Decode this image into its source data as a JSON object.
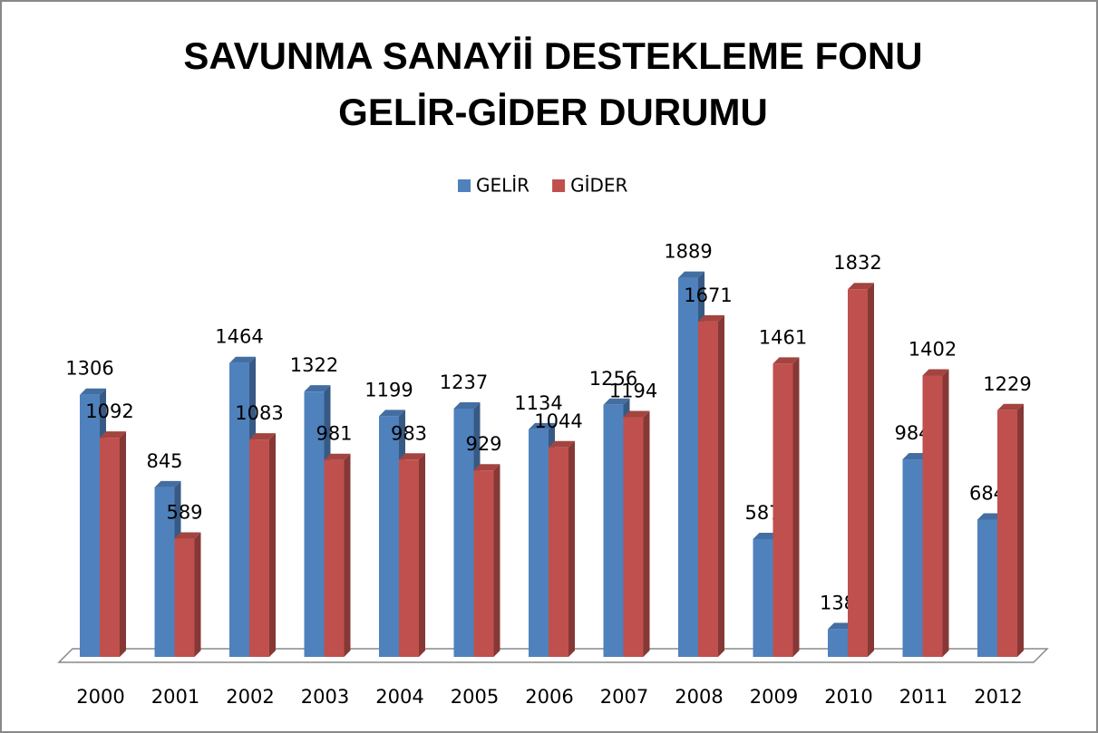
{
  "chart_data": {
    "type": "bar3d",
    "title": "SAVUNMA SANAYİİ DESTEKLEME FONU GELİR-GİDER DURUMU",
    "categories": [
      "2000",
      "2001",
      "2002",
      "2003",
      "2004",
      "2005",
      "2006",
      "2007",
      "2008",
      "2009",
      "2010",
      "2011",
      "2012"
    ],
    "series": [
      {
        "name": "GELİR",
        "color": "#4f81bd",
        "values": [
          1306,
          845,
          1464,
          1322,
          1199,
          1237,
          1134,
          1256,
          1889,
          587,
          138,
          984,
          684
        ]
      },
      {
        "name": "GİDER",
        "color": "#c0504d",
        "values": [
          1092,
          589,
          1083,
          981,
          983,
          929,
          1044,
          1194,
          1671,
          1461,
          1832,
          1402,
          1229
        ]
      }
    ],
    "ylim": [
      0,
      2000
    ],
    "legend": "top"
  }
}
